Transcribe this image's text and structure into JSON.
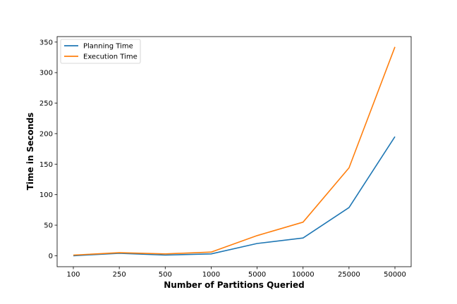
{
  "chart_data": {
    "type": "line",
    "categories": [
      "100",
      "250",
      "500",
      "1000",
      "5000",
      "10000",
      "25000",
      "50000"
    ],
    "series": [
      {
        "name": "Planning Time",
        "color": "#1f77b4",
        "values": [
          0,
          4,
          1,
          3,
          20,
          29,
          79,
          195
        ]
      },
      {
        "name": "Execution Time",
        "color": "#ff7f0e",
        "values": [
          1,
          5,
          3,
          6,
          33,
          55,
          144,
          342
        ]
      }
    ],
    "title": "",
    "xlabel": "Number of Partitions Queried",
    "ylabel": "Time in Seconds",
    "ylim": [
      -18,
      359
    ],
    "yticks": [
      0,
      50,
      100,
      150,
      200,
      250,
      300,
      350
    ],
    "grid": false,
    "legend_position": "top-left"
  }
}
